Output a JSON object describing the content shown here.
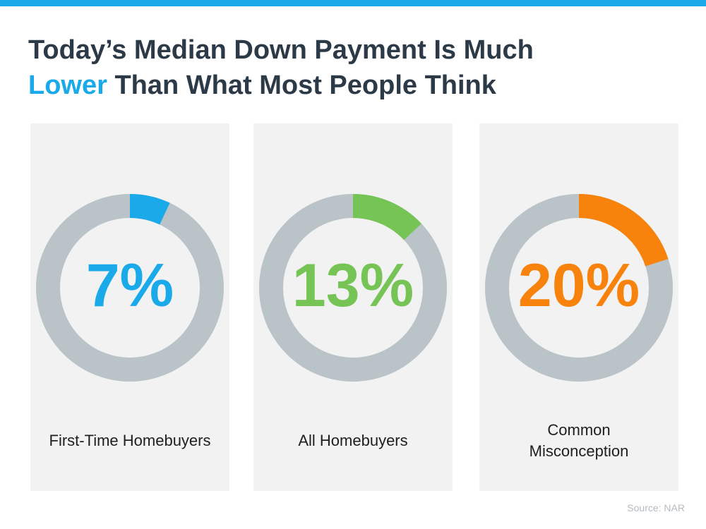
{
  "title": {
    "line1": "Today’s Median Down Payment Is Much",
    "accent": "Lower",
    "line2_rest": " Than What Most People Think"
  },
  "colors": {
    "top_bar": "#1aa9e9",
    "title_text": "#2c3a48",
    "accent": "#1aa9e9",
    "ring_track": "#b9c3c8",
    "panel_bg": "#f2f2f2"
  },
  "chart_data": [
    {
      "type": "pie",
      "label": "First-Time Homebuyers",
      "value": 7,
      "display": "7%",
      "color": "#1aa9e9"
    },
    {
      "type": "pie",
      "label": "All Homebuyers",
      "value": 13,
      "display": "13%",
      "color": "#76c356"
    },
    {
      "type": "pie",
      "label": "Common Misconception",
      "value": 20,
      "display": "20%",
      "color": "#f7820c"
    }
  ],
  "source": "Source: NAR"
}
